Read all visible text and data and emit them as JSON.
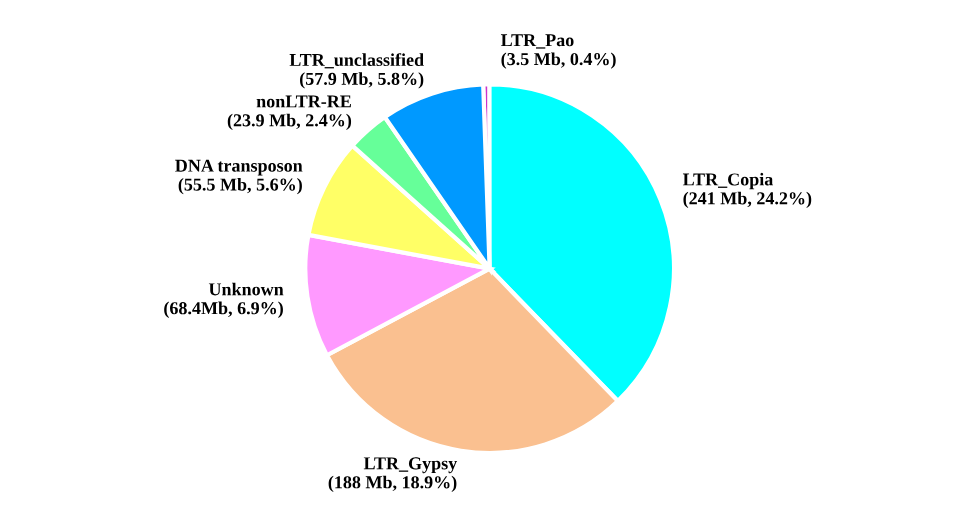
{
  "chart_data": {
    "type": "pie",
    "categories": [
      "LTR_Pao",
      "LTR_Copia",
      "LTR_Gypsy",
      "Unknown",
      "DNA transposon",
      "nonLTR-RE",
      "LTR_unclassified"
    ],
    "values": [
      3.5,
      241,
      188,
      68.4,
      55.5,
      23.9,
      57.9
    ],
    "value_labels": [
      "(3.5 Mb, 0.4%)",
      "(241 Mb, 24.2%)",
      "(188 Mb, 18.9%)",
      "(68.4Mb, 6.9%)",
      "(55.5 Mb, 5.6%)",
      "(23.9 Mb, 2.4%)",
      "(57.9 Mb, 5.8%)"
    ],
    "colors": [
      "#cc33cc",
      "#00ffff",
      "#fac090",
      "#ff99ff",
      "#ffff66",
      "#66ff99",
      "#0099ff"
    ],
    "legend": false
  }
}
